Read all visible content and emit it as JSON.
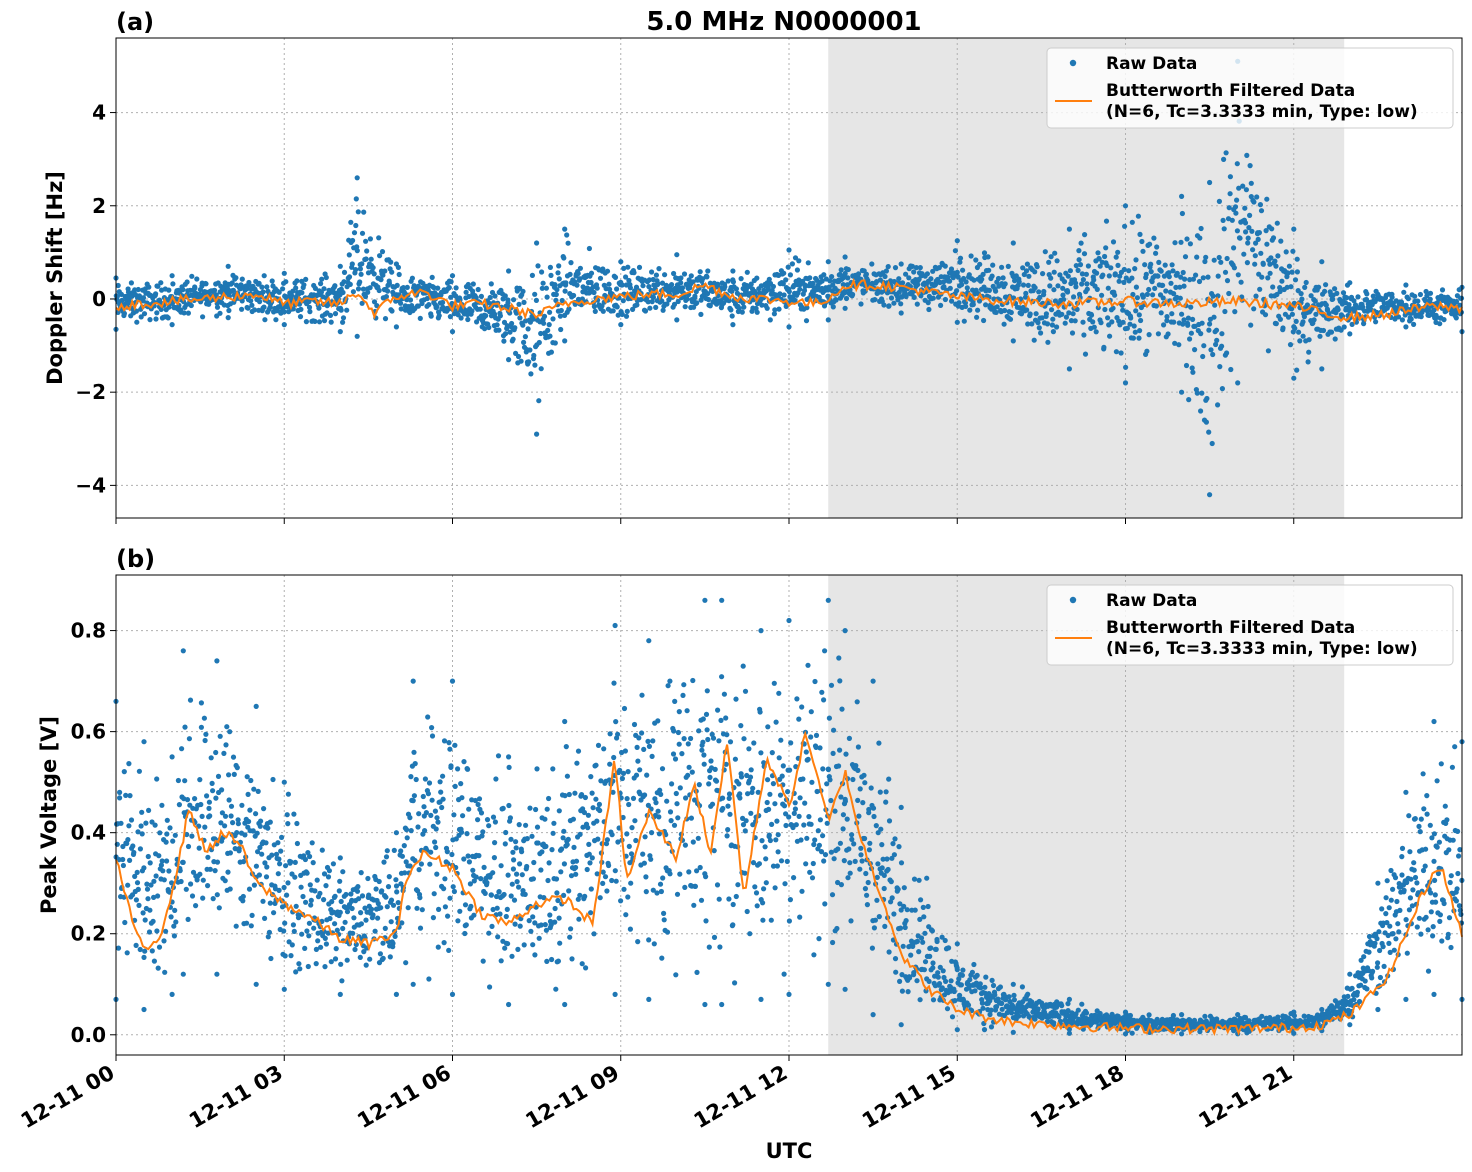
{
  "figure": {
    "title": "5.0 MHz N0000001",
    "xlabel": "UTC",
    "x_ticks": [
      "12-11 00",
      "12-11 03",
      "12-11 06",
      "12-11 09",
      "12-11 12",
      "12-11 15",
      "12-11 18",
      "12-11 21"
    ],
    "shaded_interval_hours": [
      12.7,
      21.9
    ],
    "shade_color": "#e6e6e6",
    "raw_color": "#1f77b4",
    "filtered_color": "#ff7f0e",
    "grid": "on (dotted gray)"
  },
  "legend": {
    "raw_label": "Raw Data",
    "filtered_label_line1": "Butterworth Filtered Data",
    "filtered_label_line2": "(N=6, Tc=3.3333 min, Type: low)",
    "placement": "top-right"
  },
  "chart_data": [
    {
      "type": "scatter",
      "panel_label": "(a)",
      "ylabel": "Doppler Shift [Hz]",
      "ylim": [
        -4.7,
        5.6
      ],
      "xlim_hours": [
        0,
        24
      ],
      "y_ticks": [
        -4,
        -2,
        0,
        2,
        4
      ],
      "y_tick_labels": [
        "−4",
        "−2",
        "0",
        "2",
        "4"
      ],
      "series": [
        {
          "name": "Raw Data",
          "hours": [
            0,
            1,
            2,
            3,
            4,
            4.3,
            5,
            6,
            7,
            7.5,
            8,
            9,
            10,
            11,
            12,
            12.7,
            13,
            14,
            15,
            16,
            17,
            18,
            19,
            19.5,
            20,
            21,
            21.5,
            22,
            23,
            24
          ],
          "lower": [
            -0.65,
            -0.55,
            -0.4,
            -0.55,
            -0.7,
            -0.8,
            -0.6,
            -0.7,
            -1.3,
            -2.9,
            -0.9,
            -0.55,
            -0.45,
            -0.55,
            -0.6,
            -0.45,
            -0.2,
            -0.3,
            -0.5,
            -0.9,
            -1.5,
            -1.8,
            -2.0,
            -4.2,
            -1.8,
            -1.7,
            -1.5,
            -0.75,
            -0.6,
            -0.7
          ],
          "upper": [
            0.45,
            0.5,
            0.7,
            0.55,
            0.7,
            2.6,
            0.75,
            0.5,
            0.6,
            1.2,
            1.5,
            0.8,
            0.95,
            0.6,
            1.05,
            0.8,
            0.9,
            0.75,
            1.25,
            1.2,
            1.5,
            2.0,
            2.2,
            2.5,
            5.1,
            1.5,
            0.8,
            0.35,
            0.3,
            0.25
          ]
        },
        {
          "name": "Butterworth Filtered Data",
          "hours": [
            0,
            0.5,
            1,
            1.5,
            2,
            2.5,
            3,
            3.5,
            4,
            4.3,
            4.6,
            5,
            5.5,
            6,
            6.5,
            7,
            7.5,
            8,
            8.5,
            9,
            9.5,
            10,
            10.5,
            11,
            11.5,
            12,
            12.5,
            12.8,
            13,
            13.5,
            14,
            14.5,
            15,
            15.5,
            16,
            17,
            18,
            19,
            20,
            21,
            21.5,
            22,
            22.5,
            23,
            23.5,
            24
          ],
          "values": [
            -0.15,
            -0.1,
            -0.05,
            0.0,
            0.05,
            0.1,
            -0.1,
            -0.05,
            -0.1,
            0.15,
            -0.3,
            0.05,
            0.15,
            -0.15,
            -0.1,
            -0.2,
            -0.35,
            -0.1,
            0.0,
            0.05,
            0.1,
            0.1,
            0.3,
            0.05,
            0.0,
            -0.05,
            -0.1,
            0.1,
            0.3,
            0.3,
            0.25,
            0.15,
            0.05,
            0.0,
            -0.05,
            -0.1,
            -0.05,
            -0.1,
            -0.05,
            -0.15,
            -0.3,
            -0.4,
            -0.35,
            -0.25,
            -0.15,
            -0.2
          ]
        }
      ]
    },
    {
      "type": "scatter",
      "panel_label": "(b)",
      "ylabel": "Peak Voltage [V]",
      "ylim": [
        -0.04,
        0.91
      ],
      "xlim_hours": [
        0,
        24
      ],
      "y_ticks": [
        0.0,
        0.2,
        0.4,
        0.6,
        0.8
      ],
      "y_tick_labels": [
        "0.0",
        "0.2",
        "0.4",
        "0.6",
        "0.8"
      ],
      "series": [
        {
          "name": "Raw Data",
          "hours": [
            0,
            0.5,
            1,
            1.2,
            1.8,
            2.5,
            3,
            4,
            5,
            5.3,
            6,
            7,
            8,
            8.9,
            9.5,
            10.5,
            10.8,
            11.5,
            12,
            12.7,
            13,
            13.5,
            14,
            15,
            16,
            17,
            18,
            19,
            20,
            21,
            21.5,
            22,
            22.5,
            23,
            23.5,
            24
          ],
          "lower": [
            0.07,
            0.05,
            0.08,
            0.12,
            0.12,
            0.1,
            0.09,
            0.08,
            0.08,
            0.1,
            0.08,
            0.06,
            0.06,
            0.08,
            0.07,
            0.06,
            0.06,
            0.07,
            0.08,
            0.1,
            0.09,
            0.04,
            0.02,
            0.01,
            0.005,
            0.003,
            0.002,
            0.002,
            0.002,
            0.003,
            0.008,
            0.02,
            0.05,
            0.07,
            0.08,
            0.07
          ],
          "upper": [
            0.66,
            0.58,
            0.55,
            0.76,
            0.74,
            0.65,
            0.5,
            0.35,
            0.4,
            0.7,
            0.7,
            0.55,
            0.62,
            0.81,
            0.78,
            0.86,
            0.86,
            0.8,
            0.82,
            0.86,
            0.8,
            0.7,
            0.45,
            0.18,
            0.1,
            0.07,
            0.045,
            0.04,
            0.04,
            0.045,
            0.05,
            0.12,
            0.3,
            0.48,
            0.62,
            0.58
          ]
        },
        {
          "name": "Butterworth Filtered Data",
          "hours": [
            0,
            0.2,
            0.5,
            0.8,
            1.1,
            1.3,
            1.6,
            1.9,
            2.2,
            2.5,
            3,
            3.5,
            4,
            4.5,
            5,
            5.2,
            5.5,
            6,
            6.5,
            7,
            7.5,
            8,
            8.5,
            8.9,
            9.1,
            9.5,
            10,
            10.3,
            10.6,
            10.9,
            11.2,
            11.6,
            12,
            12.3,
            12.7,
            13,
            13.3,
            13.7,
            14,
            14.5,
            15,
            15.5,
            16,
            17,
            18,
            19,
            20,
            21,
            21.5,
            22,
            22.3,
            22.7,
            23,
            23.3,
            23.6,
            24
          ],
          "values": [
            0.35,
            0.26,
            0.16,
            0.2,
            0.33,
            0.45,
            0.36,
            0.4,
            0.38,
            0.3,
            0.26,
            0.23,
            0.19,
            0.18,
            0.2,
            0.32,
            0.36,
            0.33,
            0.24,
            0.22,
            0.26,
            0.27,
            0.22,
            0.55,
            0.3,
            0.44,
            0.35,
            0.5,
            0.36,
            0.58,
            0.27,
            0.55,
            0.45,
            0.6,
            0.42,
            0.52,
            0.38,
            0.26,
            0.16,
            0.09,
            0.05,
            0.035,
            0.025,
            0.018,
            0.013,
            0.012,
            0.012,
            0.014,
            0.02,
            0.04,
            0.07,
            0.12,
            0.2,
            0.28,
            0.34,
            0.2
          ]
        }
      ]
    }
  ]
}
